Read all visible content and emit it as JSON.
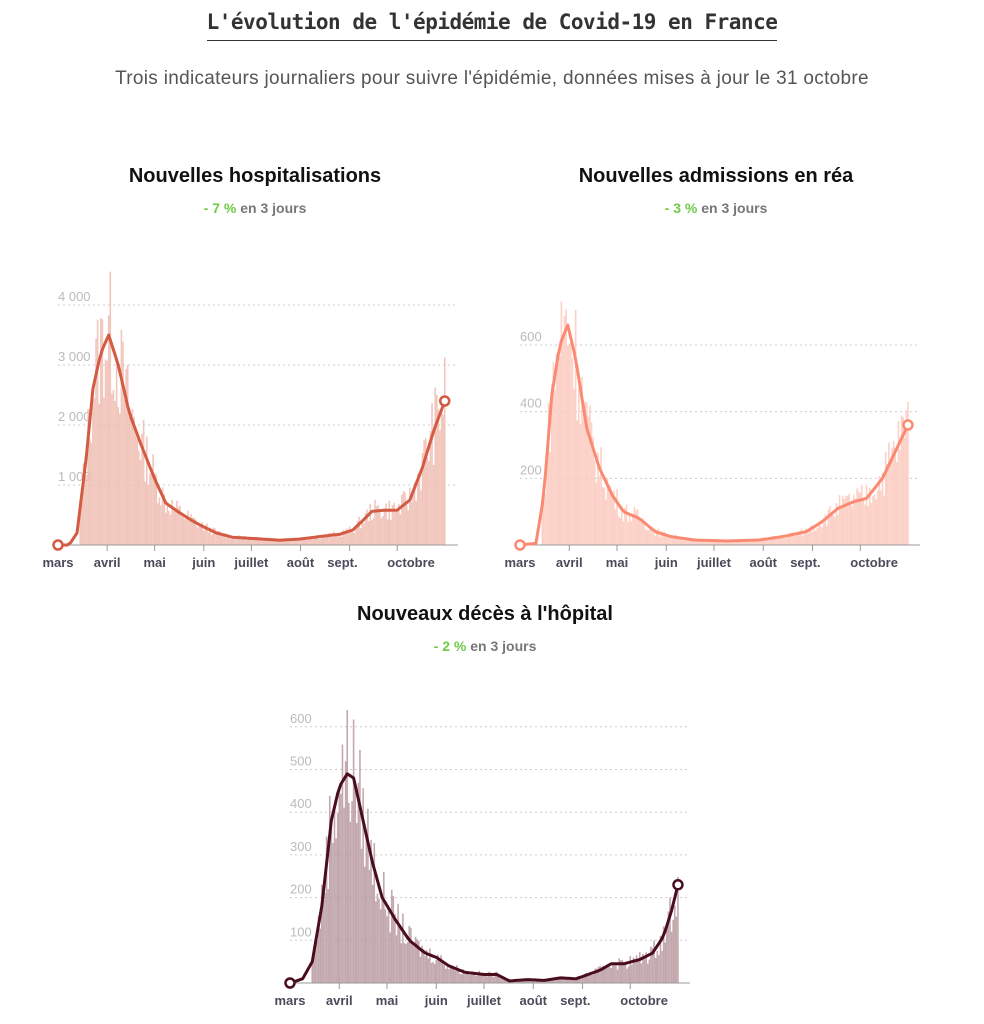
{
  "header": {
    "title": "L'évolution de l'épidémie de Covid-19 en France",
    "subtitle": "Trois indicateurs journaliers pour suivre l'épidémie, données mises à jour le 31 octobre"
  },
  "chart_data": [
    {
      "type": "bar+line",
      "title": "Nouvelles hospitalisations",
      "change": "- 7 %",
      "change_suffix": "en 3 jours",
      "yticks": [
        1000,
        2000,
        3000,
        4000
      ],
      "ytick_labels": [
        "1 000",
        "2 000",
        "3 000",
        "4 000"
      ],
      "ylim": [
        0,
        4000
      ],
      "xlabels": [
        "mars",
        "avril",
        "mai",
        "juin",
        "juillet",
        "août",
        "sept.",
        "octobre"
      ],
      "xunit": "days since 1 March",
      "line_color": "#d35a43",
      "bar_color": "#eebcb0",
      "smoothed": [
        [
          0,
          0
        ],
        [
          7,
          0
        ],
        [
          12,
          200
        ],
        [
          18,
          1500
        ],
        [
          22,
          2600
        ],
        [
          27,
          3200
        ],
        [
          32,
          3500
        ],
        [
          38,
          3000
        ],
        [
          45,
          2200
        ],
        [
          52,
          1700
        ],
        [
          61,
          1100
        ],
        [
          68,
          700
        ],
        [
          76,
          550
        ],
        [
          85,
          400
        ],
        [
          92,
          300
        ],
        [
          100,
          200
        ],
        [
          110,
          130
        ],
        [
          122,
          110
        ],
        [
          140,
          80
        ],
        [
          153,
          100
        ],
        [
          165,
          140
        ],
        [
          178,
          180
        ],
        [
          186,
          250
        ],
        [
          192,
          400
        ],
        [
          198,
          560
        ],
        [
          206,
          580
        ],
        [
          214,
          580
        ],
        [
          222,
          750
        ],
        [
          230,
          1300
        ],
        [
          237,
          1900
        ],
        [
          244,
          2400
        ]
      ]
    },
    {
      "type": "bar+line",
      "title": "Nouvelles admissions en réa",
      "change": "- 3 %",
      "change_suffix": "en 3 jours",
      "yticks": [
        200,
        400,
        600
      ],
      "ytick_labels": [
        "200",
        "400",
        "600"
      ],
      "ylim": [
        0,
        600
      ],
      "xlabels": [
        "mars",
        "avril",
        "mai",
        "juin",
        "juillet",
        "août",
        "sept.",
        "octobre"
      ],
      "xunit": "days since 1 March",
      "line_color": "#fb8a72",
      "bar_color": "#fcc9bd",
      "smoothed": [
        [
          0,
          0
        ],
        [
          10,
          5
        ],
        [
          15,
          150
        ],
        [
          20,
          450
        ],
        [
          25,
          600
        ],
        [
          30,
          660
        ],
        [
          35,
          560
        ],
        [
          42,
          350
        ],
        [
          50,
          230
        ],
        [
          58,
          150
        ],
        [
          65,
          100
        ],
        [
          75,
          80
        ],
        [
          85,
          40
        ],
        [
          95,
          25
        ],
        [
          110,
          15
        ],
        [
          130,
          12
        ],
        [
          150,
          15
        ],
        [
          165,
          25
        ],
        [
          180,
          40
        ],
        [
          190,
          70
        ],
        [
          200,
          110
        ],
        [
          210,
          130
        ],
        [
          218,
          140
        ],
        [
          228,
          200
        ],
        [
          236,
          280
        ],
        [
          244,
          360
        ]
      ]
    },
    {
      "type": "bar+line",
      "title": "Nouveaux décès à l'hôpital",
      "change": "- 2 %",
      "change_suffix": "en 3 jours",
      "yticks": [
        100,
        200,
        300,
        400,
        500,
        600
      ],
      "ytick_labels": [
        "100",
        "200",
        "300",
        "400",
        "500",
        "600"
      ],
      "ylim": [
        0,
        600
      ],
      "xlabels": [
        "mars",
        "avril",
        "mai",
        "juin",
        "juillet",
        "août",
        "sept.",
        "octobre"
      ],
      "xunit": "days since 1 March",
      "line_color": "#4a0d1e",
      "bar_color": "#b89aa0",
      "smoothed": [
        [
          0,
          0
        ],
        [
          8,
          10
        ],
        [
          14,
          50
        ],
        [
          20,
          180
        ],
        [
          26,
          380
        ],
        [
          31,
          460
        ],
        [
          36,
          490
        ],
        [
          40,
          480
        ],
        [
          46,
          380
        ],
        [
          52,
          280
        ],
        [
          58,
          200
        ],
        [
          66,
          150
        ],
        [
          75,
          100
        ],
        [
          85,
          70
        ],
        [
          92,
          60
        ],
        [
          100,
          40
        ],
        [
          110,
          25
        ],
        [
          122,
          20
        ],
        [
          130,
          20
        ],
        [
          138,
          5
        ],
        [
          150,
          8
        ],
        [
          160,
          6
        ],
        [
          170,
          12
        ],
        [
          180,
          10
        ],
        [
          186,
          18
        ],
        [
          195,
          30
        ],
        [
          202,
          45
        ],
        [
          210,
          45
        ],
        [
          220,
          55
        ],
        [
          228,
          70
        ],
        [
          235,
          110
        ],
        [
          240,
          170
        ],
        [
          244,
          230
        ]
      ]
    }
  ]
}
